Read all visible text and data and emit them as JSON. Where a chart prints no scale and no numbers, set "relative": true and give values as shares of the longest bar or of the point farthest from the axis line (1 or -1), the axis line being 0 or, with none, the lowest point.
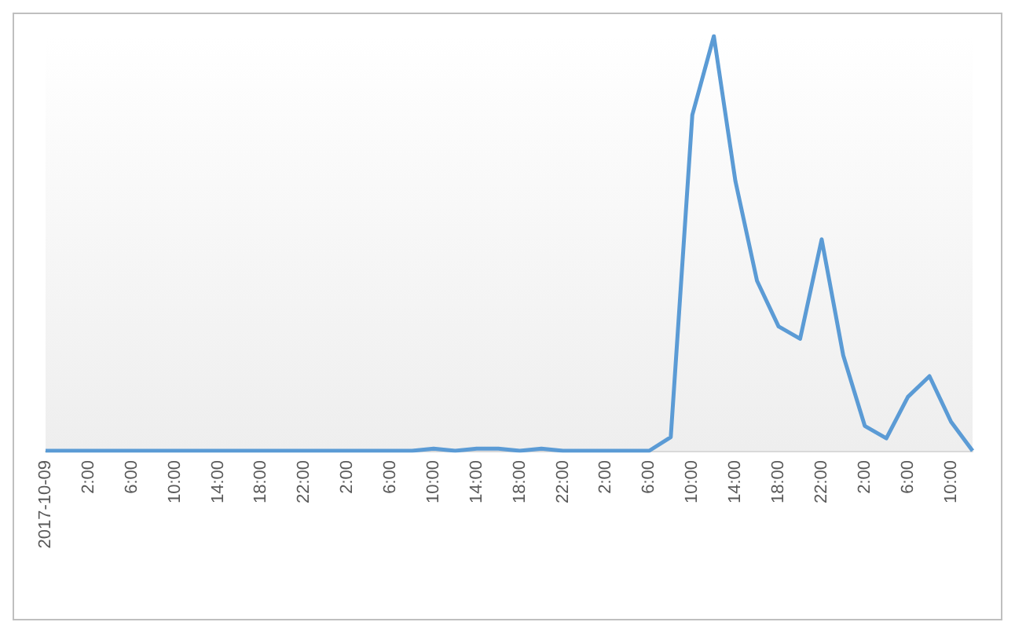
{
  "chart_data": {
    "type": "line",
    "relative": true,
    "grid": false,
    "marker": "none",
    "line_style": "solid",
    "categories": [
      "2017-10-09",
      null,
      "2:00",
      null,
      "6:00",
      null,
      "10:00",
      null,
      "14:00",
      null,
      "18:00",
      null,
      "22:00",
      null,
      "2:00",
      null,
      "6:00",
      null,
      "10:00",
      null,
      "14:00",
      null,
      "18:00",
      null,
      "22:00",
      null,
      "2:00",
      null,
      "6:00",
      null,
      "10:00",
      null,
      "14:00",
      null,
      "18:00",
      null,
      "22:00",
      null,
      "2:00",
      null,
      "6:00",
      null,
      "10:00",
      null
    ],
    "series": [
      {
        "color": "#5b9bd5",
        "values": [
          0,
          0,
          0,
          0,
          0,
          0,
          0,
          0,
          0,
          0,
          0,
          0,
          0,
          0,
          0,
          0,
          0,
          0,
          0.005,
          0,
          0.005,
          0.005,
          0,
          0.005,
          0,
          0,
          0,
          0,
          0,
          0.033,
          0.81,
          1,
          0.65,
          0.41,
          0.3,
          0.27,
          0.51,
          0.23,
          0.06,
          0.03,
          0.13,
          0.18,
          0.07,
          0
        ]
      }
    ]
  }
}
